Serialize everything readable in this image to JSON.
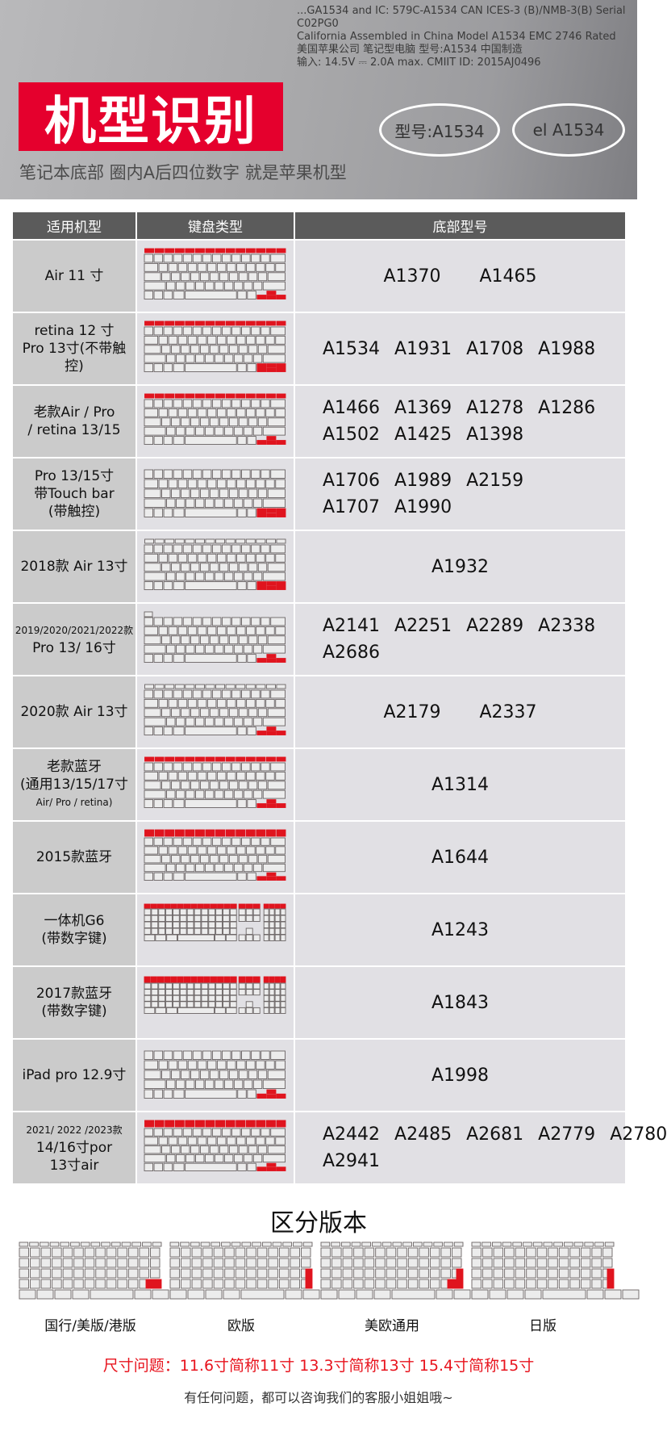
{
  "banner": {
    "title": "机型识别",
    "subtitle": "笔记本底部 圈内A后四位数字 就是苹果机型",
    "plate_lines": [
      "...GA1534 and IC: 579C-A1534 CAN ICES-3 (B)/NMB-3(B) Serial C02PG0",
      "California Assembled in China Model A1534 EMC 2746 Rated",
      "美国苹果公司 笔记型电脑 型号:A1534 中国制造",
      "输入: 14.5V ⎓ 2.0A max. CMIIT ID: 2015AJ0496"
    ],
    "bubble_1": "el A1534",
    "bubble_2": "型号:A1534"
  },
  "table": {
    "headers": [
      "适用机型",
      "键盘类型",
      "底部型号"
    ],
    "colors": {
      "header_bg": "#5b5b5b",
      "model_bg": "#cbcbcb",
      "cell_bg": "#e1e0e4",
      "highlight": "#e0141e"
    },
    "rows": [
      {
        "name": [
          "Air 11 寸"
        ],
        "models": [
          [
            "A1370",
            "A1465"
          ]
        ],
        "keyboard": {
          "fn_row": "red",
          "arrows": "red",
          "layout": "laptop"
        }
      },
      {
        "name": [
          "retina 12 寸",
          "Pro 13寸(不带触控)"
        ],
        "models": [
          [
            "A1534",
            "A1931",
            "A1708",
            "A1988"
          ]
        ],
        "keyboard": {
          "fn_row": "red",
          "arrows": "red-big",
          "layout": "laptop"
        }
      },
      {
        "name": [
          "老款Air / Pro",
          "/ retina  13/15"
        ],
        "models": [
          [
            "A1466",
            "A1369",
            "A1278",
            "A1286"
          ],
          [
            "A1502",
            "A1425",
            "A1398"
          ]
        ],
        "keyboard": {
          "fn_row": "red",
          "arrows": "red",
          "layout": "laptop"
        }
      },
      {
        "name": [
          "Pro 13/15寸",
          "带Touch bar",
          "(带触控)"
        ],
        "models": [
          [
            "A1706",
            "A1989",
            "A2159"
          ],
          [
            "A1707",
            "A1990"
          ]
        ],
        "keyboard": {
          "fn_row": "none",
          "arrows": "red-big",
          "layout": "laptop"
        }
      },
      {
        "name": [
          "2018款 Air 13寸"
        ],
        "models": [
          [
            "A1932"
          ]
        ],
        "keyboard": {
          "fn_row": "outline",
          "arrows": "red-big",
          "layout": "laptop"
        }
      },
      {
        "name": [
          "2019/2020/2021/2022款",
          "Pro 13/ 16寸"
        ],
        "models": [
          [
            "A2141",
            "A2251",
            "A2289",
            "A2338"
          ],
          [
            "A2686"
          ]
        ],
        "keyboard": {
          "fn_row": "esc",
          "arrows": "red",
          "layout": "laptop"
        }
      },
      {
        "name": [
          "2020款 Air 13寸"
        ],
        "models": [
          [
            "A2179",
            "A2337"
          ]
        ],
        "keyboard": {
          "fn_row": "outline",
          "arrows": "red",
          "layout": "laptop"
        }
      },
      {
        "name": [
          "老款蓝牙",
          "(通用13/15/17寸",
          "Air/ Pro / retina)"
        ],
        "models": [
          [
            "A1314"
          ]
        ],
        "keyboard": {
          "fn_row": "red",
          "arrows": "red",
          "layout": "laptop"
        }
      },
      {
        "name": [
          "2015款蓝牙"
        ],
        "models": [
          [
            "A1644"
          ]
        ],
        "keyboard": {
          "fn_row": "red-tall",
          "arrows": "red",
          "layout": "laptop"
        }
      },
      {
        "name": [
          "一体机G6",
          "(带数字键)"
        ],
        "models": [
          [
            "A1243"
          ]
        ],
        "keyboard": {
          "fn_row": "red",
          "arrows": "none",
          "layout": "full"
        }
      },
      {
        "name": [
          "2017款蓝牙",
          "(带数字键)"
        ],
        "models": [
          [
            "A1843"
          ]
        ],
        "keyboard": {
          "fn_row": "red-tall",
          "arrows": "none",
          "layout": "full"
        }
      },
      {
        "name": [
          "iPad pro 12.9寸"
        ],
        "models": [
          [
            "A1998"
          ]
        ],
        "keyboard": {
          "fn_row": "none",
          "arrows": "red",
          "layout": "laptop"
        }
      },
      {
        "name": [
          "2021/ 2022 /2023款",
          "14/16寸por",
          "13寸air"
        ],
        "models": [
          [
            "A2442",
            "A2485",
            "A2681",
            "A2779",
            "A2780"
          ],
          [
            "A2941"
          ]
        ],
        "keyboard": {
          "fn_row": "red-tall",
          "arrows": "red",
          "layout": "laptop"
        }
      }
    ]
  },
  "versions": {
    "title": "区分版本",
    "items": [
      {
        "label": "国行/美版/港版",
        "enter": "wide"
      },
      {
        "label": "欧版",
        "enter": "tall-narrow"
      },
      {
        "label": "美欧通用",
        "enter": "l-shape"
      },
      {
        "label": "日版",
        "enter": "tall-narrow"
      }
    ]
  },
  "size_note": "尺寸问题：11.6寸简称11寸   13.3寸简称13寸   15.4寸简称15寸",
  "footer": "有任何问题，都可以咨询我们的客服小姐姐哦~"
}
